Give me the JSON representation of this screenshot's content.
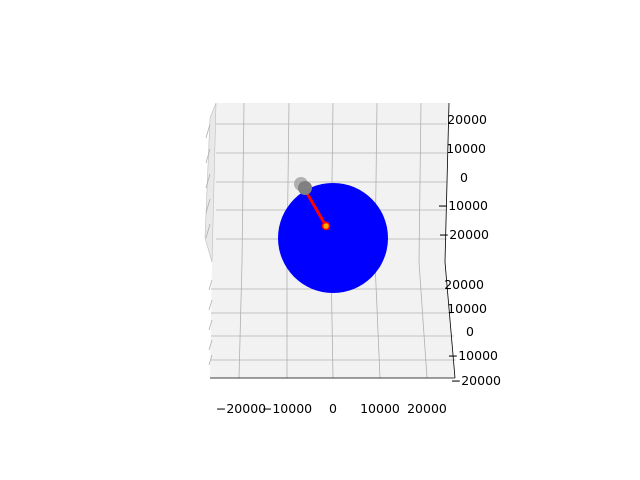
{
  "chart_data": {
    "type": "scatter",
    "projection": "3d",
    "title": "",
    "xlabel": "",
    "ylabel": "",
    "zlabel": "",
    "grid": true,
    "legend": "none",
    "x_ticks": [
      "−20000",
      "−10000",
      "0",
      "10000",
      "20000"
    ],
    "y_ticks": [
      "20000",
      "10000",
      "0",
      "−10000",
      "−20000"
    ],
    "z_ticks": [
      "20000",
      "10000",
      "0",
      "−10000",
      "−20000"
    ],
    "x_range": [
      -25000,
      25000
    ],
    "y_range": [
      -25000,
      25000
    ],
    "z_range": [
      -25000,
      25000
    ],
    "objects": [
      {
        "name": "earth",
        "shape": "sphere",
        "center": [
          0,
          0,
          0
        ],
        "radius": 6371,
        "color": "#0000ff"
      },
      {
        "name": "satellite",
        "shape": "point",
        "position": [
          -5200,
          0,
          9800
        ],
        "color": "#808080"
      },
      {
        "name": "target",
        "shape": "point",
        "position": [
          -1200,
          0,
          2700
        ],
        "color": "#ffa500"
      },
      {
        "name": "link",
        "shape": "line",
        "from": [
          -1200,
          0,
          2700
        ],
        "to": [
          -5200,
          0,
          9800
        ],
        "color": "#ff0000"
      }
    ]
  }
}
